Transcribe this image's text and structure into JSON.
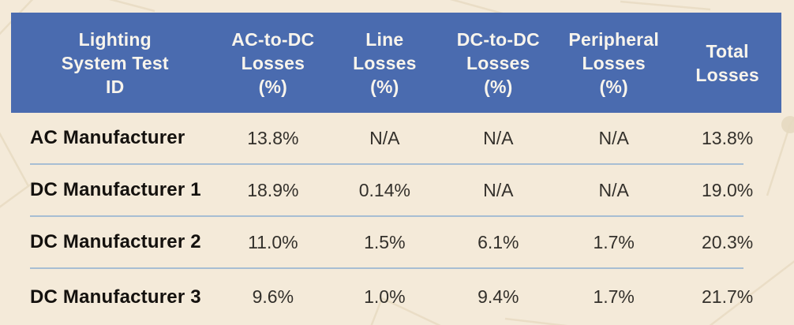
{
  "page": {
    "background_color": "#f4ead9"
  },
  "table": {
    "header": {
      "bg_color": "#4a6baf",
      "text_color": "#f8f4ec",
      "columns": [
        "Lighting\nSystem Test\nID",
        "AC-to-DC\nLosses\n(%)",
        "Line\nLosses\n(%)",
        "DC-to-DC\nLosses\n(%)",
        "Peripheral\nLosses\n(%)",
        "Total\nLosses"
      ]
    },
    "divider_color": "#a7bed3",
    "rows": [
      {
        "label": "AC Manufacturer",
        "values": [
          "13.8%",
          "N/A",
          "N/A",
          "N/A",
          "13.8%"
        ]
      },
      {
        "label": "DC Manufacturer 1",
        "values": [
          "18.9%",
          "0.14%",
          "N/A",
          "N/A",
          "19.0%"
        ]
      },
      {
        "label": "DC Manufacturer 2",
        "values": [
          "11.0%",
          "1.5%",
          "6.1%",
          "1.7%",
          "20.3%"
        ]
      },
      {
        "label": "DC Manufacturer 3",
        "values": [
          "9.6%",
          "1.0%",
          "9.4%",
          "1.7%",
          "21.7%"
        ]
      }
    ]
  },
  "chart_data": {
    "type": "table",
    "columns": [
      "Lighting System Test ID",
      "AC-to-DC Losses (%)",
      "Line Losses (%)",
      "DC-to-DC Losses (%)",
      "Peripheral Losses (%)",
      "Total Losses"
    ],
    "rows": [
      [
        "AC Manufacturer",
        "13.8%",
        "N/A",
        "N/A",
        "N/A",
        "13.8%"
      ],
      [
        "DC Manufacturer 1",
        "18.9%",
        "0.14%",
        "N/A",
        "N/A",
        "19.0%"
      ],
      [
        "DC Manufacturer 2",
        "11.0%",
        "1.5%",
        "6.1%",
        "1.7%",
        "20.3%"
      ],
      [
        "DC Manufacturer 3",
        "9.6%",
        "1.0%",
        "9.4%",
        "1.7%",
        "21.7%"
      ]
    ]
  }
}
